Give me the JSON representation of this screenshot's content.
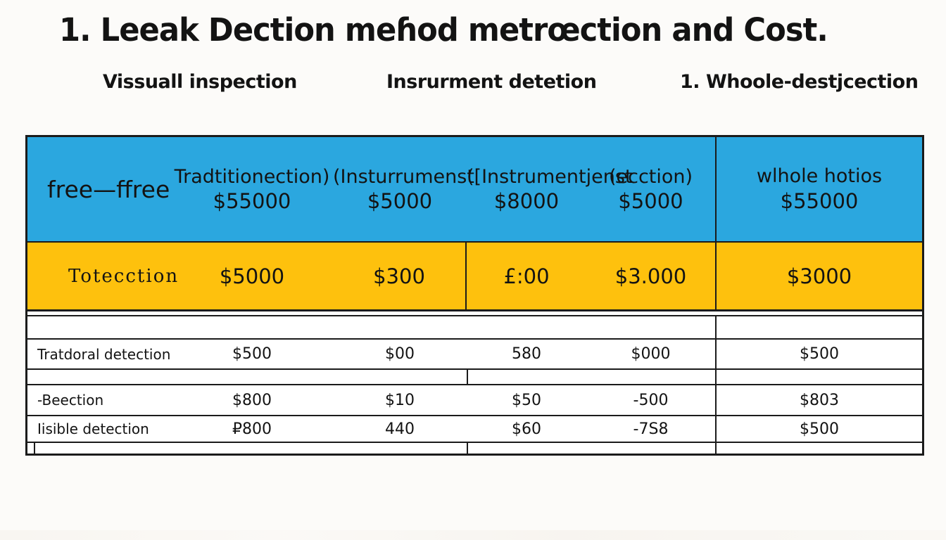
{
  "title": "1. Leeak Dection meɦod metrœction and Cost.",
  "subtitles": {
    "s0": "Vissuall inspection",
    "s1": "Insrurment detetion",
    "s2": "1. Whoole-destjcection"
  },
  "table": {
    "header": {
      "label": "free—ffree",
      "w0": "Tradtitionection)",
      "w1": "(Insturrumenst",
      "w2": "([Instrumentjenst",
      "w3": "(ecction)",
      "a0": "$55000",
      "a1": "$5000",
      "a2": "$8000",
      "a3": "$5000",
      "last_word": "wlhole hotios",
      "last_amount": "$55000"
    },
    "cost_row": {
      "label": "Totecction",
      "v0": "$5000",
      "v1": "$300",
      "v2": "£:00",
      "v3": "$3.000",
      "last": "$3000"
    },
    "row1": {
      "label": "Tratdoral detection",
      "v0": "$500",
      "v1": "$00",
      "v2": "580",
      "v3": "$000",
      "last": "$500"
    },
    "row2": {
      "label": "-Beection",
      "v0": "$800",
      "v1": "$10",
      "v2": "$50",
      "v3": "-500",
      "last": "$803"
    },
    "row3": {
      "label": "Iisible detection",
      "v0": "₽800",
      "v1": "440",
      "v2": "$60",
      "v3": "-7S8",
      "last": "$500"
    },
    "colors": {
      "header_bg": "#2ba7df",
      "highlight_bg": "#fec10d",
      "border": "#1b1b1b"
    }
  }
}
